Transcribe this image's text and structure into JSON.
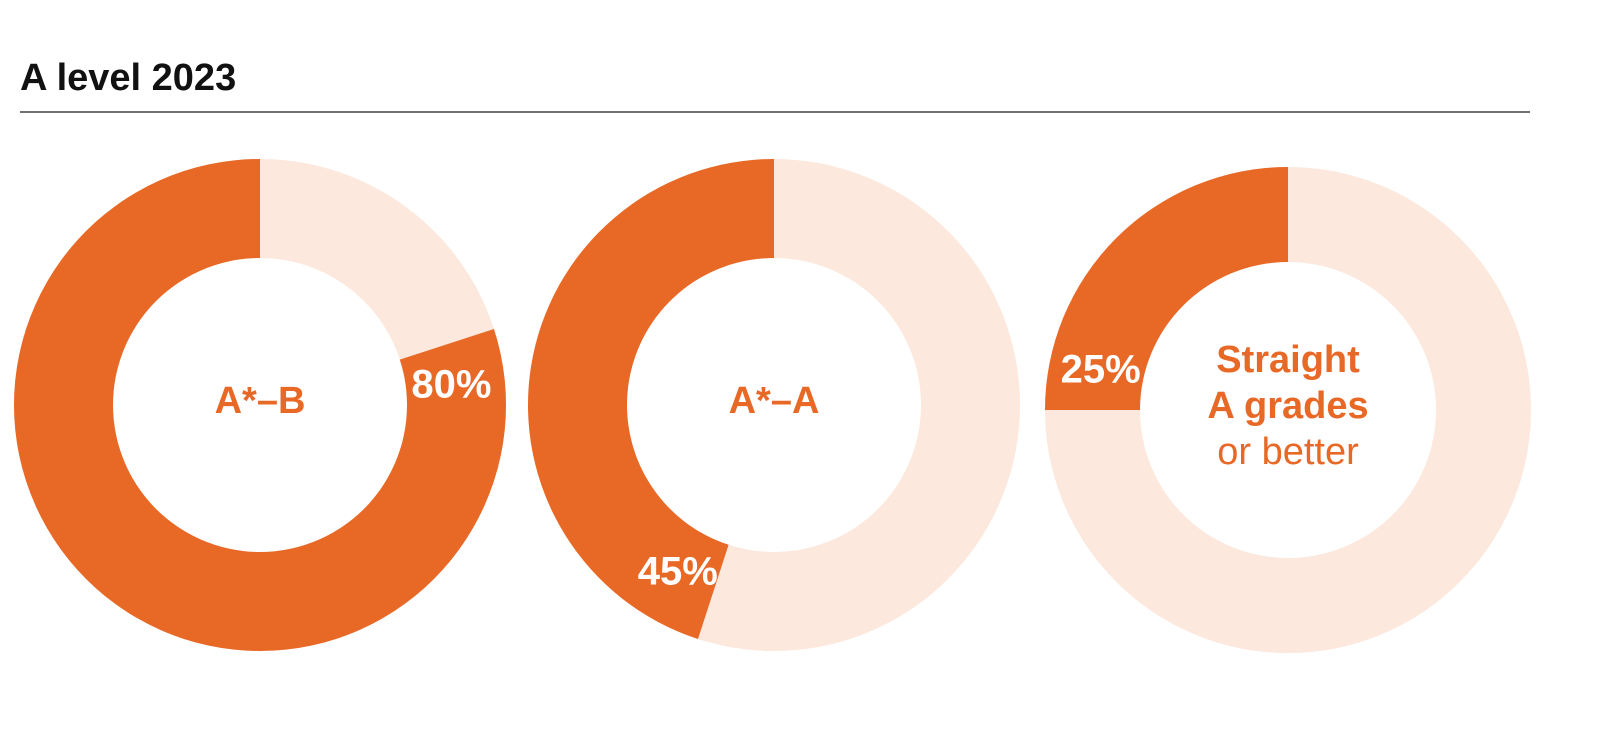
{
  "title": "A level 2023",
  "chart_data": [
    {
      "type": "donut",
      "center_label": [
        "A*–B"
      ],
      "values": [
        80
      ],
      "value_labels": [
        "80%"
      ],
      "color": "#e86826",
      "track_color": "#fce8dc"
    },
    {
      "type": "donut",
      "center_label": [
        "A*–A"
      ],
      "values": [
        45
      ],
      "value_labels": [
        "45%"
      ],
      "color": "#e86826",
      "track_color": "#fce8dc"
    },
    {
      "type": "donut",
      "center_label": [
        "Straight",
        "A grades",
        "or better"
      ],
      "values": [
        25
      ],
      "value_labels": [
        "25%"
      ],
      "color": "#e86826",
      "track_color": "#fce8dc"
    }
  ]
}
